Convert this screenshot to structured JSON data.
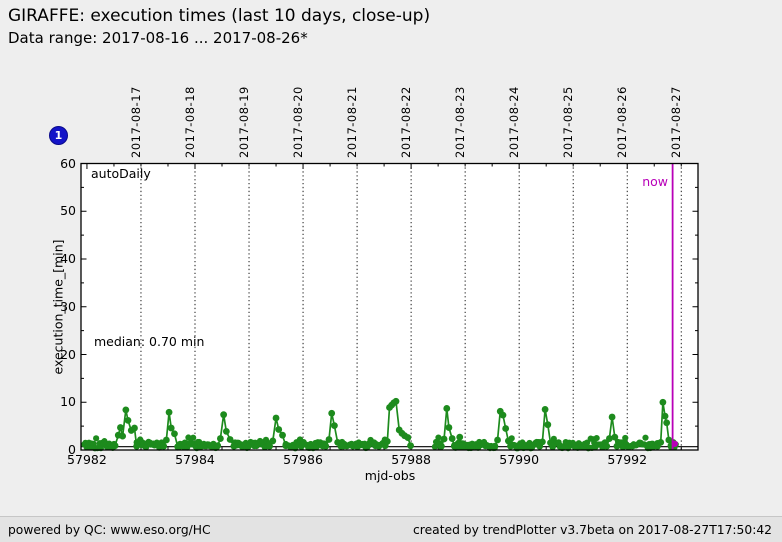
{
  "header": {
    "title": "GIRAFFE: execution times (last 10 days, close-up)",
    "subtitle": "Data range: 2017-08-16 ... 2017-08-26*"
  },
  "badge": {
    "label": "1"
  },
  "footer": {
    "left": "powered by QC: www.eso.org/HC",
    "right": "created by trendPlotter v3.7beta on 2017-08-27T17:50:42"
  },
  "chart_data": {
    "type": "scatter",
    "title": "GIRAFFE: execution times (last 10 days, close-up)",
    "subtitle": "Data range: 2017-08-16 ... 2017-08-26*",
    "xlabel": "mjd-obs",
    "ylabel": "execution_time_[min]",
    "series_label": "autoDaily",
    "series_color": "#1d8b1d",
    "median_value": 0.7,
    "median_label": "median: 0.70 min",
    "xlim": [
      57981.89,
      57993.31
    ],
    "ylim": [
      0,
      60
    ],
    "x_ticks_major": [
      57982,
      57984,
      57986,
      57988,
      57990,
      57992
    ],
    "x_minor_step": 0.5,
    "y_ticks_major": [
      0,
      10,
      20,
      30,
      40,
      50,
      60
    ],
    "y_minor_step": 5,
    "grid": "vertical-dotted-at-dates",
    "legend_position": "inside-top-left",
    "top_axis_dates": [
      {
        "mjd": 57983,
        "label": "2017-08-17"
      },
      {
        "mjd": 57984,
        "label": "2017-08-18"
      },
      {
        "mjd": 57985,
        "label": "2017-08-19"
      },
      {
        "mjd": 57986,
        "label": "2017-08-20"
      },
      {
        "mjd": 57987,
        "label": "2017-08-21"
      },
      {
        "mjd": 57988,
        "label": "2017-08-22"
      },
      {
        "mjd": 57989,
        "label": "2017-08-23"
      },
      {
        "mjd": 57990,
        "label": "2017-08-24"
      },
      {
        "mjd": 57991,
        "label": "2017-08-25"
      },
      {
        "mjd": 57992,
        "label": "2017-08-26"
      },
      {
        "mjd": 57993,
        "label": "2017-08-27"
      }
    ],
    "now_line": {
      "mjd": 57992.84,
      "label": "now",
      "color": "#b800b8"
    },
    "now_point": [
      57992.88,
      1.3
    ],
    "spikes": [
      [
        [
          57982.52,
          0.9
        ],
        [
          57982.58,
          3.1
        ],
        [
          57982.62,
          4.7
        ],
        [
          57982.66,
          2.9
        ],
        [
          57982.72,
          8.4
        ],
        [
          57982.76,
          6.2
        ],
        [
          57982.82,
          4.1
        ],
        [
          57982.88,
          4.6
        ],
        [
          57982.92,
          0.8
        ]
      ],
      [
        [
          57983.42,
          0.8
        ],
        [
          57983.47,
          2.1
        ],
        [
          57983.52,
          7.9
        ],
        [
          57983.56,
          4.6
        ],
        [
          57983.62,
          3.4
        ],
        [
          57983.68,
          0.7
        ]
      ],
      [
        [
          57984.42,
          0.9
        ],
        [
          57984.47,
          2.4
        ],
        [
          57984.53,
          7.4
        ],
        [
          57984.58,
          3.9
        ],
        [
          57984.65,
          2.2
        ],
        [
          57984.72,
          0.8
        ]
      ],
      [
        [
          57985.38,
          0.8
        ],
        [
          57985.44,
          1.9
        ],
        [
          57985.5,
          6.7
        ],
        [
          57985.55,
          4.3
        ],
        [
          57985.62,
          3.1
        ],
        [
          57985.68,
          0.9
        ]
      ],
      [
        [
          57986.42,
          0.8
        ],
        [
          57986.48,
          2.2
        ],
        [
          57986.53,
          7.7
        ],
        [
          57986.58,
          5.1
        ],
        [
          57986.64,
          1.6
        ],
        [
          57986.7,
          0.8
        ]
      ],
      [
        [
          57987.52,
          0.9
        ],
        [
          57987.56,
          1.8
        ],
        [
          57987.6,
          8.9
        ],
        [
          57987.64,
          9.4
        ],
        [
          57987.68,
          9.9
        ],
        [
          57987.72,
          10.2
        ],
        [
          57987.78,
          4.2
        ],
        [
          57987.83,
          3.5
        ],
        [
          57987.88,
          3.0
        ],
        [
          57987.94,
          2.6
        ],
        [
          57987.99,
          0.9
        ]
      ],
      [
        [
          57988.56,
          0.8
        ],
        [
          57988.61,
          2.3
        ],
        [
          57988.66,
          8.7
        ],
        [
          57988.7,
          4.7
        ],
        [
          57988.76,
          2.4
        ],
        [
          57988.8,
          0.8
        ]
      ],
      [
        [
          57988.86,
          0.8
        ],
        [
          57988.9,
          2.7
        ],
        [
          57988.95,
          0.9
        ]
      ],
      [
        [
          57989.55,
          0.8
        ],
        [
          57989.6,
          2.1
        ],
        [
          57989.65,
          8.1
        ],
        [
          57989.7,
          7.3
        ],
        [
          57989.75,
          4.5
        ],
        [
          57989.8,
          1.9
        ],
        [
          57989.84,
          0.8
        ]
      ],
      [
        [
          57990.38,
          0.8
        ],
        [
          57990.43,
          1.7
        ],
        [
          57990.48,
          8.5
        ],
        [
          57990.53,
          5.3
        ],
        [
          57990.58,
          1.5
        ],
        [
          57990.62,
          0.8
        ]
      ],
      [
        [
          57991.62,
          0.8
        ],
        [
          57991.67,
          2.4
        ],
        [
          57991.72,
          6.9
        ],
        [
          57991.77,
          2.7
        ],
        [
          57991.81,
          0.8
        ]
      ],
      [
        [
          57992.56,
          0.8
        ],
        [
          57992.62,
          1.6
        ],
        [
          57992.66,
          10.0
        ],
        [
          57992.7,
          7.1
        ],
        [
          57992.73,
          5.7
        ],
        [
          57992.77,
          2.1
        ],
        [
          57992.81,
          0.9
        ]
      ]
    ],
    "baseline_segments": [
      [
        57981.95,
        57982.52
      ],
      [
        57982.92,
        57983.42
      ],
      [
        57983.68,
        57984.42
      ],
      [
        57984.72,
        57985.38
      ],
      [
        57985.68,
        57986.42
      ],
      [
        57986.7,
        57987.52
      ],
      [
        57988.44,
        57988.56
      ],
      [
        57988.8,
        57989.55
      ],
      [
        57989.84,
        57990.38
      ],
      [
        57990.62,
        57991.62
      ],
      [
        57991.81,
        57992.56
      ],
      [
        57992.81,
        57992.9
      ]
    ],
    "baseline_value_range": [
      0.35,
      1.7
    ]
  }
}
